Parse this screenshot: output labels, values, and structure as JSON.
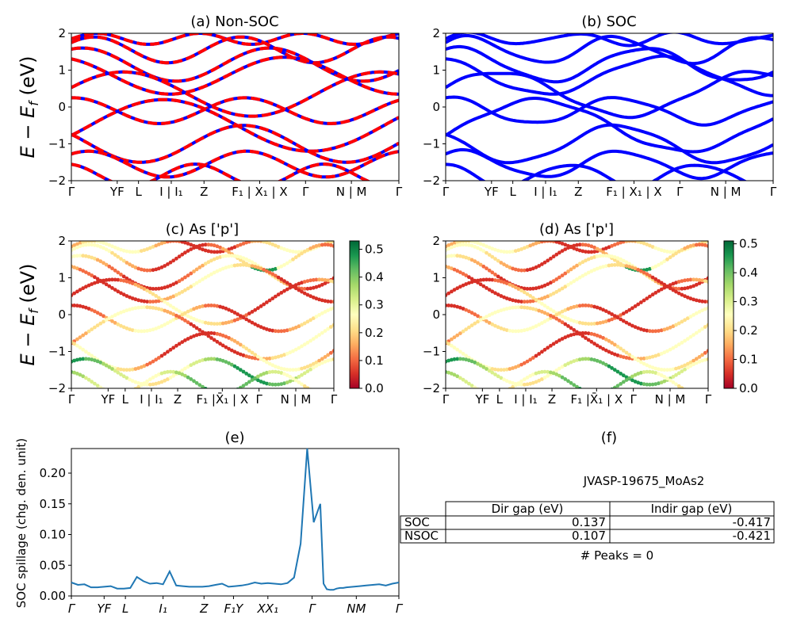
{
  "figure": {
    "material_id": "JVASP-19675_MoAs2",
    "peaks_text": "# Peaks = 0",
    "band_ylabel": "E − E_f (eV)",
    "spillage_ylabel": "SOC spillage (chg. den. unit)"
  },
  "colors": {
    "band_blue": "#0000ff",
    "band_red": "#ff0000",
    "spillage_line": "#1f77b4"
  },
  "kpath_labels_top": [
    "Γ",
    "YF",
    "L",
    "I | I₁",
    "Z",
    "F₁ | X₁ | X",
    "Γ",
    "N | M",
    "Γ"
  ],
  "kpath_labels_mid": [
    "Γ",
    "YF",
    "L",
    "I | I₁",
    "Z",
    "F₁ |X̄₁ | X",
    "Γ",
    "N | M",
    "Γ"
  ],
  "kpath_labels_bottom": [
    "Γ",
    "YF",
    "L",
    "I₁",
    "Z",
    "F₁Y",
    "XX₁",
    "Γ",
    "NM",
    "Γ"
  ],
  "chart_data": [
    {
      "panel": "a",
      "type": "line",
      "title": "(a) Non-SOC",
      "ylim": [
        -2,
        2
      ],
      "yticks": [
        "2",
        "1",
        "0",
        "−1",
        "−2"
      ],
      "series": [
        {
          "color": "#ff0000",
          "style": "dashed-over-blue",
          "bands": 14
        }
      ]
    },
    {
      "panel": "b",
      "type": "line",
      "title": "(b) SOC",
      "ylim": [
        -2,
        2
      ],
      "yticks": [
        "2",
        "1",
        "0",
        "−1",
        "−2"
      ],
      "series": [
        {
          "color": "#0000ff",
          "bands": 14
        }
      ]
    },
    {
      "panel": "c",
      "type": "scatter",
      "title": "(c)  As ['p']",
      "ylim": [
        -2,
        2
      ],
      "yticks": [
        "2",
        "1",
        "0",
        "−1",
        "−2"
      ],
      "colorbar": {
        "cmap": "RdYlGn",
        "range": [
          0.0,
          0.53
        ],
        "ticks": [
          "0.5",
          "0.4",
          "0.3",
          "0.2",
          "0.1",
          "0.0"
        ]
      }
    },
    {
      "panel": "d",
      "type": "scatter",
      "title": "(d) As ['p']",
      "ylim": [
        -2,
        2
      ],
      "yticks": [
        "2",
        "1",
        "0",
        "−1",
        "−2"
      ],
      "colorbar": {
        "cmap": "RdYlGn",
        "range": [
          0.0,
          0.51
        ],
        "ticks": [
          "0.5",
          "0.4",
          "0.3",
          "0.2",
          "0.1",
          "0.0"
        ]
      }
    },
    {
      "panel": "e",
      "type": "line",
      "title": "(e)",
      "ylabel": "SOC spillage (chg. den. unit)",
      "ylim": [
        0,
        0.24
      ],
      "yticks": [
        "0.20",
        "0.15",
        "0.10",
        "0.05",
        "0.00"
      ],
      "x": [
        0,
        0.02,
        0.04,
        0.06,
        0.08,
        0.1,
        0.12,
        0.14,
        0.16,
        0.18,
        0.2,
        0.22,
        0.24,
        0.26,
        0.28,
        0.3,
        0.32,
        0.34,
        0.36,
        0.38,
        0.4,
        0.42,
        0.44,
        0.46,
        0.48,
        0.5,
        0.52,
        0.54,
        0.56,
        0.58,
        0.6,
        0.62,
        0.64,
        0.66,
        0.68,
        0.7,
        0.72,
        0.74,
        0.76,
        0.77,
        0.78,
        0.79,
        0.8,
        0.81,
        0.82,
        0.83,
        0.84,
        0.86,
        0.88,
        0.9,
        0.92,
        0.94,
        0.96,
        0.98,
        1.0
      ],
      "values": [
        0.022,
        0.018,
        0.019,
        0.014,
        0.014,
        0.015,
        0.016,
        0.012,
        0.012,
        0.013,
        0.031,
        0.024,
        0.02,
        0.021,
        0.019,
        0.04,
        0.017,
        0.016,
        0.015,
        0.015,
        0.015,
        0.016,
        0.018,
        0.02,
        0.015,
        0.016,
        0.017,
        0.019,
        0.022,
        0.02,
        0.021,
        0.02,
        0.019,
        0.021,
        0.03,
        0.085,
        0.24,
        0.12,
        0.15,
        0.02,
        0.011,
        0.01,
        0.01,
        0.012,
        0.013,
        0.013,
        0.014,
        0.015,
        0.016,
        0.017,
        0.018,
        0.019,
        0.017,
        0.02,
        0.022
      ]
    },
    {
      "panel": "f",
      "type": "table",
      "title": "(f)",
      "columns": [
        "",
        "Dir gap (eV)",
        "Indir gap (eV)"
      ],
      "rows": [
        [
          "SOC",
          "0.137",
          "-0.417"
        ],
        [
          "NSOC",
          "0.107",
          "-0.421"
        ]
      ]
    }
  ]
}
